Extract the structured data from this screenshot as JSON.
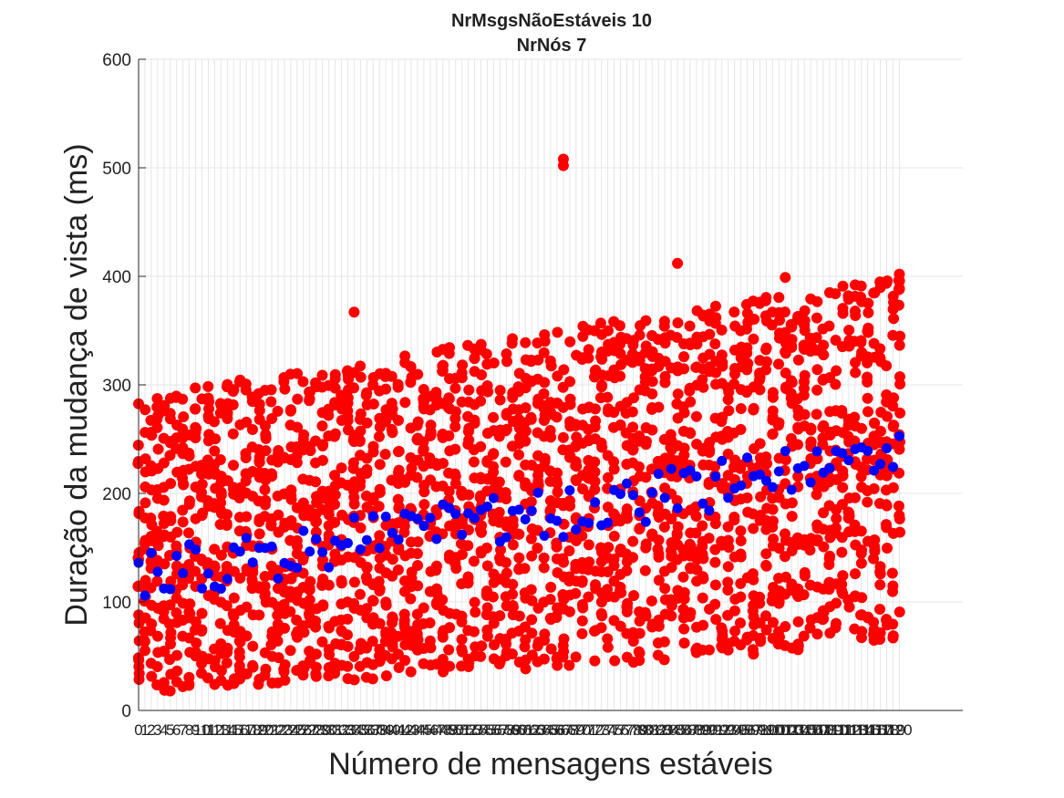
{
  "chart_data": {
    "type": "scatter",
    "title": [
      "NrMsgsNãoEstáveis 10",
      "NrNós 7"
    ],
    "xlabel": "Número de mensagens estáveis",
    "ylabel": "Duração da mudança de vista (ms)",
    "xlim": [
      0,
      130
    ],
    "ylim": [
      0,
      600
    ],
    "yticks": [
      0,
      100,
      200,
      300,
      400,
      500,
      600
    ],
    "xticks_start": 0,
    "xticks_end": 120,
    "xticks_step": 1,
    "xtick_label_edges": [
      "0",
      "0"
    ],
    "grid": true,
    "colors": {
      "samples": "#ff0000",
      "means": "#0000ff",
      "grid": "#e6e6e6",
      "axis": "#262626"
    },
    "series": [
      {
        "role": "samples",
        "seed": 7,
        "per_x": 20,
        "x_range": [
          0,
          120
        ],
        "y_min_at_start": 15,
        "y_max_at_start": 290,
        "y_min_at_end": 60,
        "y_max_at_end": 400,
        "outliers": [
          [
            67,
            502
          ],
          [
            67,
            508
          ],
          [
            85,
            412
          ],
          [
            102,
            399
          ],
          [
            120,
            402
          ],
          [
            34,
            367
          ],
          [
            109,
            385
          ]
        ]
      },
      {
        "role": "means",
        "x_range": [
          0,
          120
        ],
        "y_start": 125,
        "y_end": 230,
        "jitter": 25
      }
    ]
  }
}
